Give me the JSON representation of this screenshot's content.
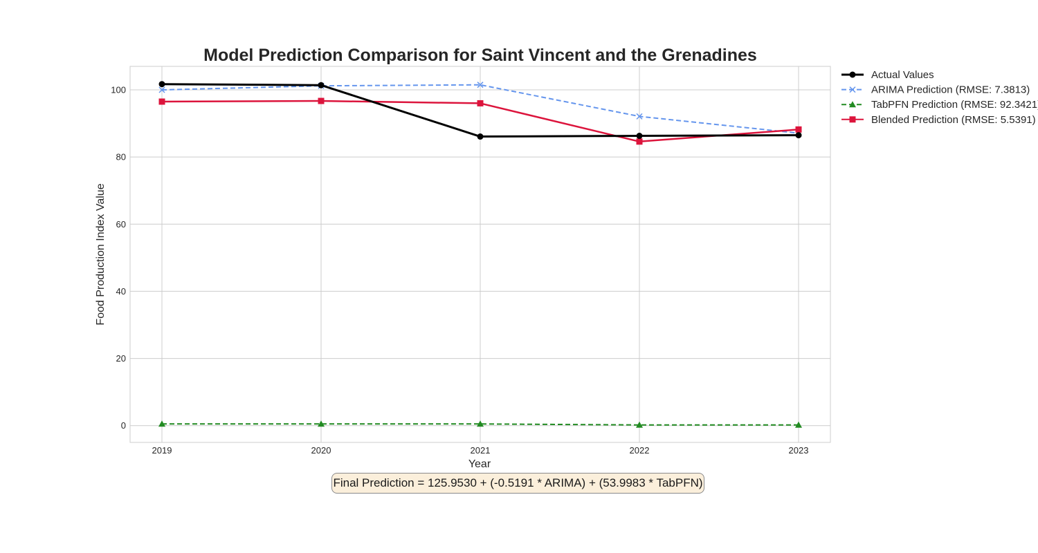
{
  "chart_data": {
    "type": "line",
    "title": "Model Prediction Comparison for Saint Vincent and the Grenadines",
    "xlabel": "Year",
    "ylabel": "Food Production Index Value",
    "x": [
      2019,
      2020,
      2021,
      2022,
      2023
    ],
    "x_ticks": [
      "2019",
      "2020",
      "2021",
      "2022",
      "2023"
    ],
    "y_ticks": [
      "0",
      "20",
      "40",
      "60",
      "80",
      "100"
    ],
    "ylim": [
      -5,
      107
    ],
    "xlim": [
      2018.8,
      2023.2
    ],
    "grid": true,
    "legend_position": "outside top-right",
    "series": [
      {
        "name": "Actual Values",
        "values": [
          101.7,
          101.4,
          86.1,
          86.3,
          86.5
        ],
        "color": "#000000",
        "style": "solid",
        "marker": "circle"
      },
      {
        "name": "ARIMA Prediction (RMSE: 7.3813)",
        "values": [
          100.0,
          101.2,
          101.5,
          92.1,
          87.1
        ],
        "color": "#6495ED",
        "style": "dashed",
        "marker": "x"
      },
      {
        "name": "TabPFN Prediction (RMSE: 92.3421)",
        "values": [
          0.5,
          0.5,
          0.5,
          0.2,
          0.2
        ],
        "color": "#228B22",
        "style": "dashed",
        "marker": "triangle"
      },
      {
        "name": "Blended Prediction (RMSE: 5.5391)",
        "values": [
          96.5,
          96.7,
          96.0,
          84.6,
          88.2
        ],
        "color": "#DC143C",
        "style": "solid",
        "marker": "square"
      }
    ]
  },
  "formula_text": "Final Prediction = 125.9530 + (-0.5191 * ARIMA) + (53.9983 * TabPFN)"
}
